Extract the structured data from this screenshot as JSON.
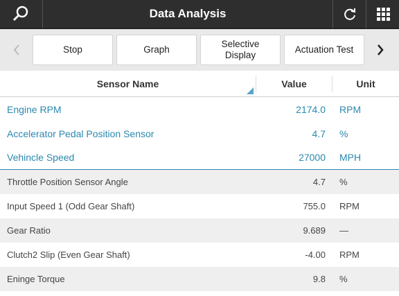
{
  "header": {
    "title": "Data Analysis"
  },
  "toolbar": {
    "buttons": [
      "Stop",
      "Graph",
      "Selective Display",
      "Actuation Test"
    ]
  },
  "table": {
    "columns": [
      "Sensor Name",
      "Value",
      "Unit"
    ],
    "rows": [
      [
        "Engine RPM",
        "2174.0",
        "RPM"
      ],
      [
        "Accelerator Pedal Position Sensor",
        "4.7",
        "%"
      ],
      [
        "Vehincle Speed",
        "27000",
        "MPH"
      ],
      [
        "Throttle Position Sensor Angle",
        "4.7",
        "%"
      ],
      [
        "Input Speed 1 (Odd Gear Shaft)",
        "755.0",
        "RPM"
      ],
      [
        "Gear Ratio",
        "9.689",
        "—"
      ],
      [
        "Clutch2 Slip (Even Gear Shaft)",
        "-4.00",
        "RPM"
      ],
      [
        "Eninge Torque",
        "9.8",
        "%"
      ]
    ]
  }
}
